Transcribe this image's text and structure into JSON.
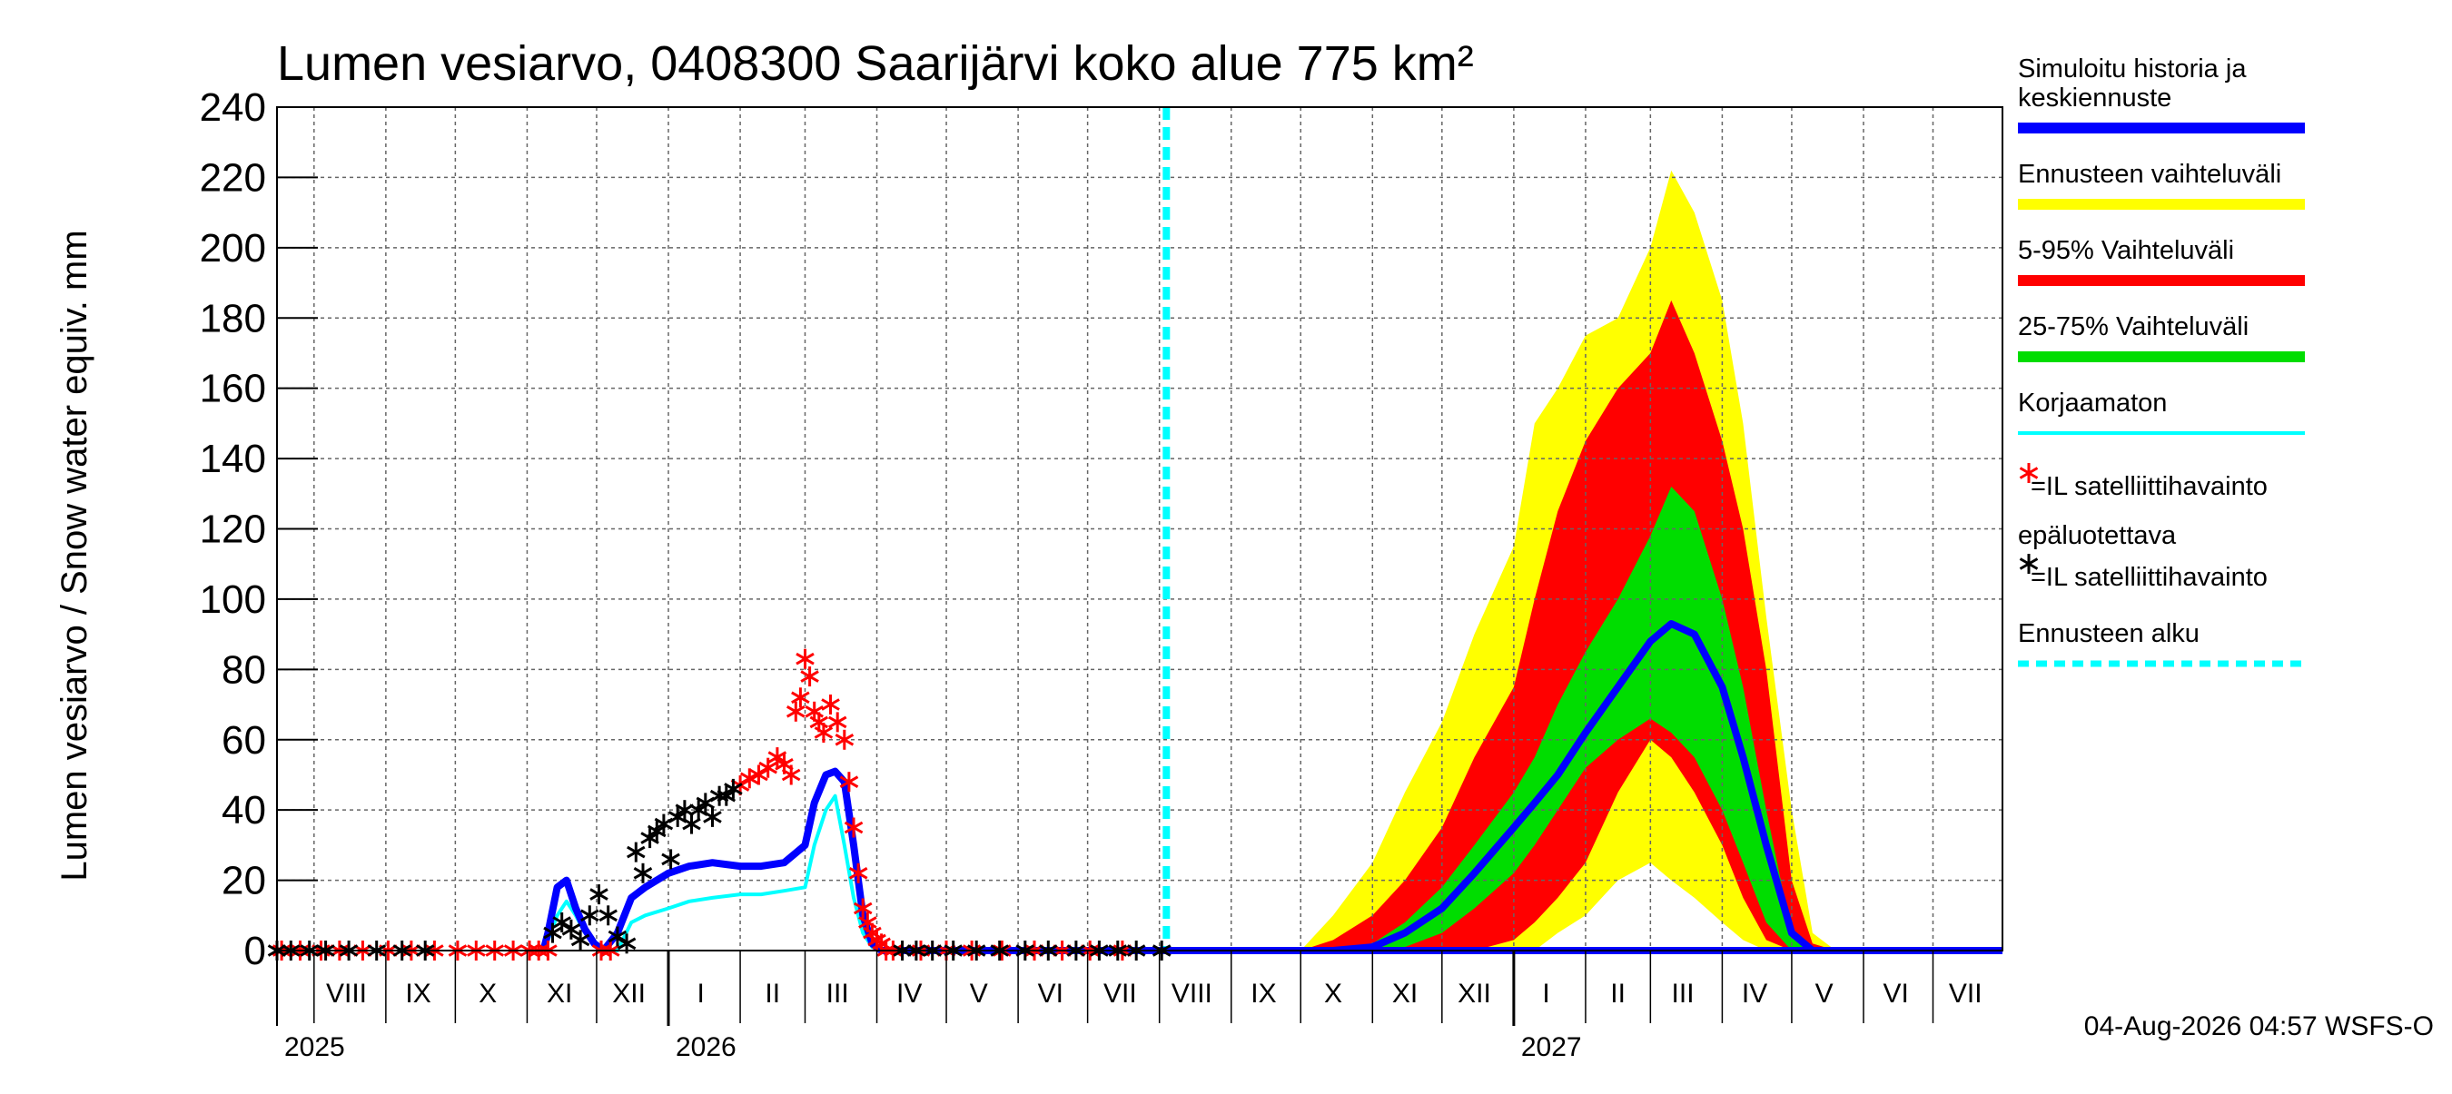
{
  "chart_data": {
    "type": "area",
    "title": "Lumen vesiarvo, 0408300 Saarijärvi koko alue 775 km²",
    "ylabel": "Lumen vesiarvo / Snow water equiv.    mm",
    "ylim": [
      0,
      240
    ],
    "yticks": [
      0,
      20,
      40,
      60,
      80,
      100,
      120,
      140,
      160,
      180,
      200,
      220,
      240
    ],
    "grid": true,
    "x_axis": {
      "range": [
        "2025-07-16",
        "2027-07-31"
      ],
      "months": [
        {
          "label": "VIII",
          "date": "2025-08-15"
        },
        {
          "label": "IX",
          "date": "2025-09-15"
        },
        {
          "label": "X",
          "date": "2025-10-15"
        },
        {
          "label": "XI",
          "date": "2025-11-15"
        },
        {
          "label": "XII",
          "date": "2025-12-15"
        },
        {
          "label": "I",
          "date": "2026-01-15"
        },
        {
          "label": "II",
          "date": "2026-02-15"
        },
        {
          "label": "III",
          "date": "2026-03-15"
        },
        {
          "label": "IV",
          "date": "2026-04-15"
        },
        {
          "label": "V",
          "date": "2026-05-15"
        },
        {
          "label": "VI",
          "date": "2026-06-15"
        },
        {
          "label": "VII",
          "date": "2026-07-15"
        },
        {
          "label": "VIII",
          "date": "2026-08-15"
        },
        {
          "label": "IX",
          "date": "2026-09-15"
        },
        {
          "label": "X",
          "date": "2026-10-15"
        },
        {
          "label": "XI",
          "date": "2026-11-15"
        },
        {
          "label": "XII",
          "date": "2026-12-15"
        },
        {
          "label": "I",
          "date": "2027-01-15"
        },
        {
          "label": "II",
          "date": "2027-02-15"
        },
        {
          "label": "III",
          "date": "2027-03-15"
        },
        {
          "label": "IV",
          "date": "2027-04-15"
        },
        {
          "label": "V",
          "date": "2027-05-15"
        },
        {
          "label": "VI",
          "date": "2027-06-15"
        },
        {
          "label": "VII",
          "date": "2027-07-15"
        }
      ],
      "years": [
        {
          "label": "2025",
          "date": "2025-07-16"
        },
        {
          "label": "2026",
          "date": "2026-01-01"
        },
        {
          "label": "2027",
          "date": "2027-01-01"
        }
      ],
      "year_separators": [
        "2026-01-01",
        "2027-01-01"
      ]
    },
    "forecast_start": "2026-08-04",
    "legend_placement": "right",
    "series": [
      {
        "name": "Ennusteen vaihteluväli",
        "kind": "band",
        "color": "#ffff00",
        "x": [
          "2026-10-01",
          "2026-10-15",
          "2026-11-01",
          "2026-11-15",
          "2026-12-01",
          "2026-12-15",
          "2027-01-01",
          "2027-01-10",
          "2027-01-20",
          "2027-02-01",
          "2027-02-15",
          "2027-03-01",
          "2027-03-10",
          "2027-03-20",
          "2027-04-01",
          "2027-04-10",
          "2027-04-20",
          "2027-05-01",
          "2027-05-10",
          "2027-05-20",
          "2027-06-01"
        ],
        "upper": [
          0,
          10,
          25,
          45,
          65,
          90,
          115,
          150,
          160,
          175,
          180,
          200,
          222,
          210,
          185,
          150,
          95,
          40,
          5,
          0,
          0
        ],
        "lower": [
          0,
          0,
          0,
          0,
          0,
          0,
          0,
          0,
          5,
          10,
          20,
          25,
          20,
          15,
          8,
          3,
          0,
          0,
          0,
          0,
          0
        ]
      },
      {
        "name": "5-95% Vaihteluväli",
        "kind": "band",
        "color": "#ff0000",
        "x": [
          "2026-10-01",
          "2026-10-15",
          "2026-11-01",
          "2026-11-15",
          "2026-12-01",
          "2026-12-15",
          "2027-01-01",
          "2027-01-10",
          "2027-01-20",
          "2027-02-01",
          "2027-02-15",
          "2027-03-01",
          "2027-03-10",
          "2027-03-20",
          "2027-04-01",
          "2027-04-10",
          "2027-04-20",
          "2027-05-01",
          "2027-05-10",
          "2027-05-20",
          "2027-06-01"
        ],
        "upper": [
          0,
          3,
          10,
          20,
          35,
          55,
          75,
          100,
          125,
          145,
          160,
          170,
          185,
          170,
          145,
          120,
          80,
          20,
          2,
          0,
          0
        ],
        "lower": [
          0,
          0,
          0,
          0,
          0,
          0,
          3,
          8,
          15,
          25,
          45,
          60,
          55,
          45,
          30,
          15,
          3,
          0,
          0,
          0,
          0
        ]
      },
      {
        "name": "25-75% Vaihteluväli",
        "kind": "band",
        "color": "#00dd00",
        "x": [
          "2026-10-15",
          "2026-11-01",
          "2026-11-15",
          "2026-12-01",
          "2026-12-15",
          "2027-01-01",
          "2027-01-10",
          "2027-01-20",
          "2027-02-01",
          "2027-02-15",
          "2027-03-01",
          "2027-03-10",
          "2027-03-20",
          "2027-04-01",
          "2027-04-10",
          "2027-04-20",
          "2027-05-01",
          "2027-05-10",
          "2027-05-20"
        ],
        "upper": [
          0,
          2,
          8,
          18,
          30,
          45,
          55,
          70,
          85,
          100,
          118,
          132,
          125,
          100,
          75,
          40,
          5,
          0,
          0
        ],
        "lower": [
          0,
          0,
          1,
          5,
          12,
          22,
          30,
          40,
          52,
          60,
          66,
          62,
          55,
          40,
          25,
          8,
          0,
          0,
          0
        ]
      },
      {
        "name": "Korjaamaton",
        "kind": "line",
        "color": "#00ffff",
        "x": [
          "2025-11-08",
          "2025-11-10",
          "2025-11-14",
          "2025-11-18",
          "2025-11-22",
          "2025-11-26",
          "2025-11-30",
          "2025-12-04",
          "2025-12-10",
          "2025-12-16",
          "2025-12-22",
          "2026-01-01",
          "2026-01-10",
          "2026-01-20",
          "2026-02-01",
          "2026-02-10",
          "2026-02-20",
          "2026-03-01",
          "2026-03-05",
          "2026-03-10",
          "2026-03-14",
          "2026-03-18",
          "2026-03-22",
          "2026-03-26",
          "2026-03-30",
          "2026-04-03"
        ],
        "y": [
          0,
          3,
          10,
          14,
          10,
          5,
          2,
          0,
          0,
          8,
          10,
          12,
          14,
          15,
          16,
          16,
          17,
          18,
          30,
          40,
          44,
          30,
          15,
          5,
          1,
          0
        ]
      },
      {
        "name": "Simuloitu historia ja keskiennuste",
        "kind": "line",
        "color": "#0000ff",
        "x": [
          "2025-11-08",
          "2025-11-10",
          "2025-11-14",
          "2025-11-18",
          "2025-11-22",
          "2025-11-26",
          "2025-11-30",
          "2025-12-04",
          "2025-12-10",
          "2025-12-16",
          "2025-12-22",
          "2026-01-01",
          "2026-01-10",
          "2026-01-20",
          "2026-02-01",
          "2026-02-10",
          "2026-02-20",
          "2026-03-01",
          "2026-03-05",
          "2026-03-10",
          "2026-03-14",
          "2026-03-18",
          "2026-03-22",
          "2026-03-26",
          "2026-03-30",
          "2026-04-03",
          "2026-10-15",
          "2026-11-01",
          "2026-11-15",
          "2026-12-01",
          "2026-12-15",
          "2027-01-01",
          "2027-01-10",
          "2027-01-20",
          "2027-02-01",
          "2027-02-15",
          "2027-03-01",
          "2027-03-10",
          "2027-03-20",
          "2027-04-01",
          "2027-04-10",
          "2027-04-20",
          "2027-05-01",
          "2027-05-10",
          "2027-05-20"
        ],
        "y": [
          0,
          5,
          18,
          20,
          12,
          6,
          2,
          0,
          5,
          15,
          18,
          22,
          24,
          25,
          24,
          24,
          25,
          30,
          42,
          50,
          51,
          48,
          30,
          10,
          2,
          0,
          0,
          1,
          5,
          12,
          22,
          35,
          42,
          50,
          62,
          75,
          88,
          93,
          90,
          75,
          55,
          30,
          5,
          0,
          0
        ]
      },
      {
        "name": "=IL satelliittihavainto epäluotettava",
        "kind": "markers",
        "color": "#ff0000",
        "x": [
          "2025-07-18",
          "2025-07-26",
          "2025-08-04",
          "2025-08-12",
          "2025-08-22",
          "2025-09-02",
          "2025-09-12",
          "2025-09-22",
          "2025-10-02",
          "2025-10-10",
          "2025-10-18",
          "2025-10-26",
          "2025-11-02",
          "2025-11-06",
          "2025-11-10",
          "2025-12-03",
          "2025-12-07",
          "2026-02-01",
          "2026-02-05",
          "2026-02-09",
          "2026-02-13",
          "2026-02-17",
          "2026-02-20",
          "2026-02-23",
          "2026-02-25",
          "2026-02-27",
          "2026-03-01",
          "2026-03-03",
          "2026-03-05",
          "2026-03-07",
          "2026-03-09",
          "2026-03-12",
          "2026-03-15",
          "2026-03-18",
          "2026-03-20",
          "2026-03-22",
          "2026-03-24",
          "2026-03-26",
          "2026-03-28",
          "2026-03-30",
          "2026-04-01",
          "2026-04-03",
          "2026-04-05",
          "2026-04-08",
          "2026-04-20",
          "2026-05-01",
          "2026-05-12",
          "2026-05-25",
          "2026-06-08",
          "2026-06-20",
          "2026-07-02",
          "2026-07-16"
        ],
        "y": [
          0,
          0,
          0,
          0,
          0,
          0,
          0,
          0,
          0,
          0,
          0,
          0,
          0,
          0,
          0,
          0,
          0,
          47,
          49,
          50,
          52,
          55,
          53,
          50,
          68,
          72,
          83,
          78,
          68,
          65,
          62,
          70,
          65,
          60,
          48,
          35,
          22,
          12,
          8,
          5,
          3,
          2,
          0,
          0,
          0,
          0,
          0,
          0,
          0,
          0,
          0,
          0
        ]
      },
      {
        "name": "=IL satelliittihavainto",
        "kind": "markers",
        "color": "#000000",
        "x": [
          "2025-07-16",
          "2025-07-22",
          "2025-07-30",
          "2025-08-06",
          "2025-08-16",
          "2025-08-28",
          "2025-09-08",
          "2025-09-18",
          "2025-11-12",
          "2025-11-16",
          "2025-11-20",
          "2025-11-24",
          "2025-11-28",
          "2025-12-02",
          "2025-12-06",
          "2025-12-10",
          "2025-12-14",
          "2025-12-18",
          "2025-12-21",
          "2025-12-24",
          "2025-12-27",
          "2025-12-30",
          "2026-01-02",
          "2026-01-05",
          "2026-01-08",
          "2026-01-11",
          "2026-01-14",
          "2026-01-17",
          "2026-01-20",
          "2026-01-23",
          "2026-01-26",
          "2026-01-29",
          "2026-04-12",
          "2026-04-18",
          "2026-04-25",
          "2026-05-04",
          "2026-05-14",
          "2026-05-24",
          "2026-06-04",
          "2026-06-14",
          "2026-06-26",
          "2026-07-06",
          "2026-07-14",
          "2026-07-22",
          "2026-08-02"
        ],
        "y": [
          0,
          0,
          0,
          0,
          0,
          0,
          0,
          0,
          5,
          8,
          6,
          3,
          10,
          16,
          10,
          4,
          2,
          28,
          22,
          32,
          34,
          36,
          26,
          38,
          40,
          36,
          40,
          42,
          38,
          44,
          44,
          46,
          0,
          0,
          0,
          0,
          0,
          0,
          0,
          0,
          0,
          0,
          0,
          0,
          0
        ]
      }
    ],
    "legend": [
      {
        "label": "Simuloitu historia ja",
        "label2": "keskiennuste",
        "color": "#0000ff",
        "style": "line-thick"
      },
      {
        "label": "Ennusteen vaihteluväli",
        "color": "#ffff00",
        "style": "line-thick"
      },
      {
        "label": "5-95% Vaihteluväli",
        "color": "#ff0000",
        "style": "line-thick"
      },
      {
        "label": "25-75% Vaihteluväli",
        "color": "#00dd00",
        "style": "line-thick"
      },
      {
        "label": "Korjaamaton",
        "color": "#00ffff",
        "style": "line-thin"
      },
      {
        "label": "=IL satelliittihavainto",
        "label2": "epäluotettava",
        "color": "#ff0000",
        "style": "marker"
      },
      {
        "label": "=IL satelliittihavainto",
        "color": "#000000",
        "style": "marker"
      },
      {
        "label": "Ennusteen alku",
        "color": "#00ffff",
        "style": "dashed"
      }
    ],
    "timestamp": "04-Aug-2026 04:57 WSFS-O"
  }
}
